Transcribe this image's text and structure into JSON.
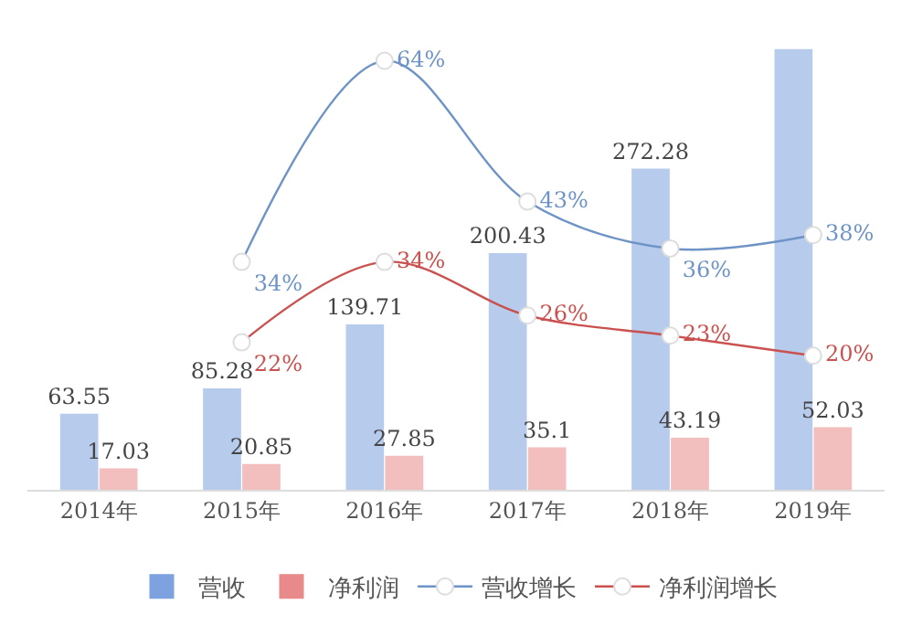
{
  "chart_data": {
    "type": "bar",
    "categories": [
      "2014年",
      "2015年",
      "2016年",
      "2017年",
      "2018年",
      "2019年"
    ],
    "series": [
      {
        "name": "营收",
        "color": "#7ea2e0",
        "values": [
          63.55,
          85.28,
          139.71,
          200.43,
          272.28,
          374
        ],
        "value_labels": [
          "63.55",
          "85.28",
          "139.71",
          "200.43",
          "272.28",
          null
        ]
      },
      {
        "name": "净利润",
        "color": "#e88a8a",
        "values": [
          17.03,
          20.85,
          27.85,
          35.1,
          43.19,
          52.03
        ],
        "value_labels": [
          "17.03",
          "20.85",
          "27.85",
          "35.1",
          "43.19",
          "52.03"
        ]
      },
      {
        "name": "营收增长",
        "type": "line",
        "axis": "y2",
        "color": "#6e93c6",
        "values": [
          null,
          34,
          64,
          43,
          36,
          38
        ],
        "value_labels": [
          null,
          "34%",
          "64%",
          "43%",
          "36%",
          "38%"
        ]
      },
      {
        "name": "净利润增长",
        "type": "line",
        "axis": "y2",
        "color": "#c9514f",
        "values": [
          null,
          22,
          34,
          26,
          23,
          20
        ],
        "value_labels": [
          null,
          "22%",
          "34%",
          "26%",
          "23%",
          "20%"
        ]
      }
    ],
    "legend": "bottom",
    "marker": "circle",
    "line_style": "solid"
  }
}
